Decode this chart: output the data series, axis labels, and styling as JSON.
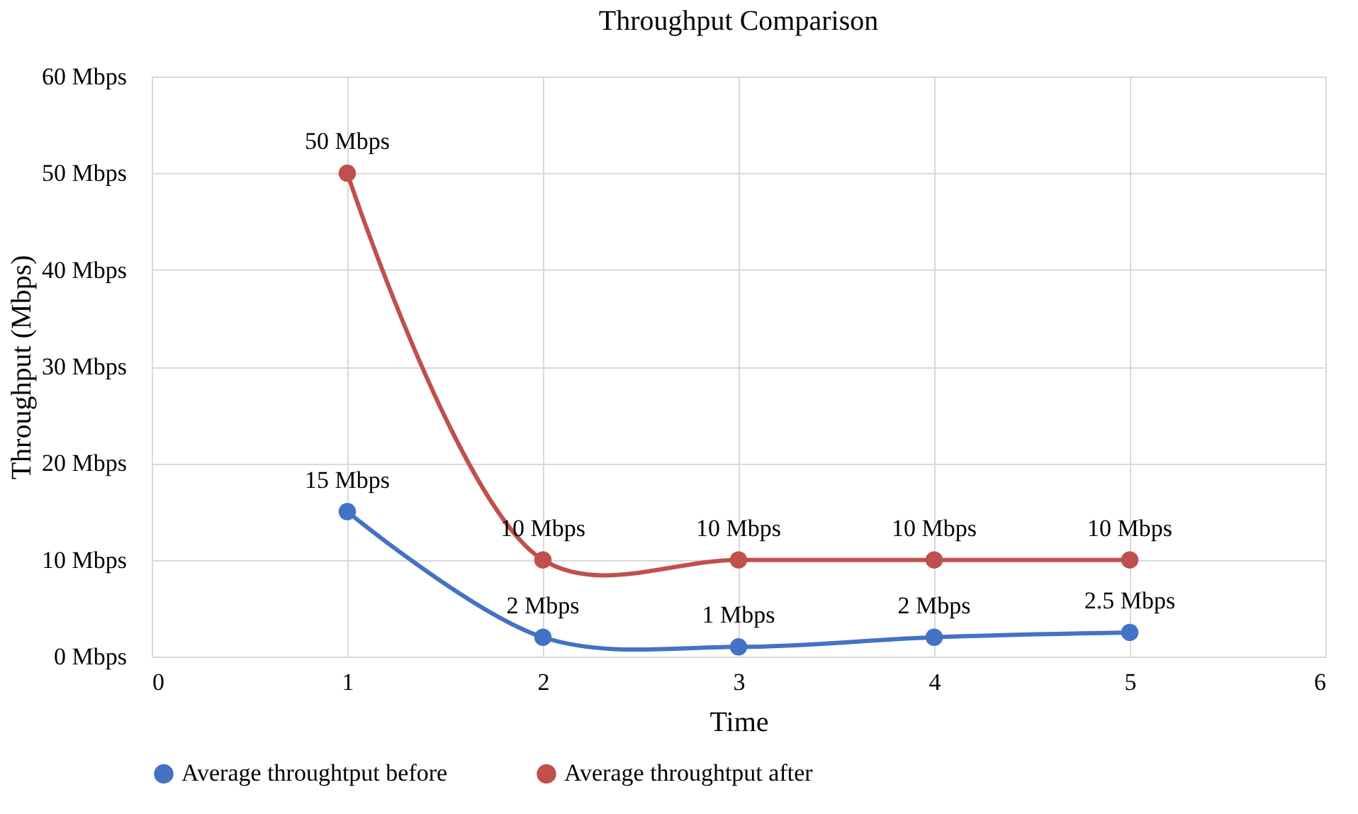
{
  "chart_data": {
    "type": "line",
    "title": "Throughput Comparison",
    "xlabel": "Time",
    "ylabel": "Throughput (Mbps)",
    "x": [
      1,
      2,
      3,
      4,
      5
    ],
    "series": [
      {
        "name": "Average throughtput before",
        "color": "#4472c4",
        "values": [
          15,
          2,
          1,
          2,
          2.5
        ],
        "value_labels": [
          "15 Mbps",
          "2 Mbps",
          "1 Mbps",
          "2 Mbps",
          "2.5 Mbps"
        ]
      },
      {
        "name": "Average throughtput after",
        "color": "#c0504d",
        "values": [
          50,
          10,
          10,
          10,
          10
        ],
        "value_labels": [
          "50 Mbps",
          "10 Mbps",
          "10 Mbps",
          "10 Mbps",
          "10 Mbps"
        ]
      }
    ],
    "xlim": [
      0,
      6
    ],
    "xticks": [
      0,
      1,
      2,
      3,
      4,
      5,
      6
    ],
    "ylim": [
      0,
      60
    ],
    "yticks": [
      {
        "value": 0,
        "label": "0 Mbps"
      },
      {
        "value": 10,
        "label": "10 Mbps"
      },
      {
        "value": 20,
        "label": "20 Mbps"
      },
      {
        "value": 30,
        "label": "30 Mbps"
      },
      {
        "value": 40,
        "label": "40 Mbps"
      },
      {
        "value": 50,
        "label": "50 Mbps"
      },
      {
        "value": 60,
        "label": "60 Mbps"
      }
    ],
    "grid": true,
    "legend": "bottom",
    "marker": "circle",
    "line_style": "solid"
  }
}
